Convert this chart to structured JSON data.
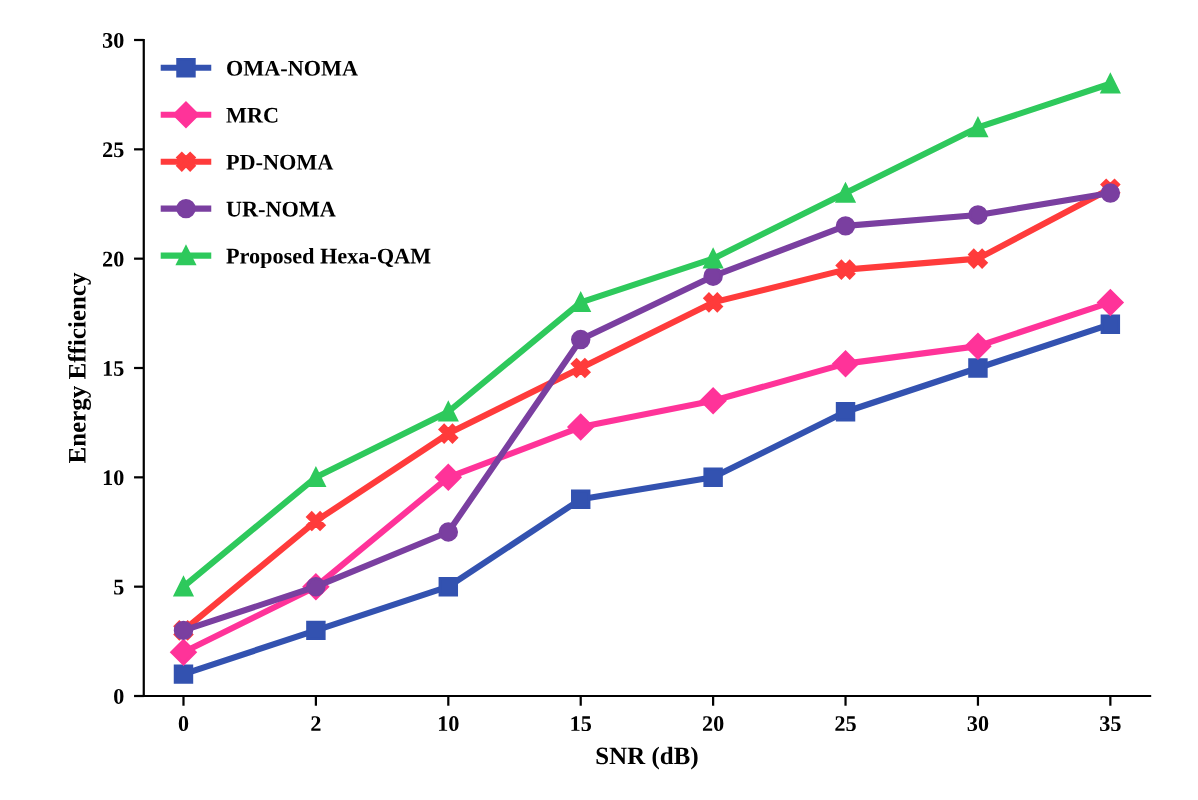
{
  "chart_data": {
    "type": "line",
    "xlabel": "SNR (dB)",
    "ylabel": "Energy Efficiency",
    "categories": [
      "0",
      "2",
      "10",
      "15",
      "20",
      "25",
      "30",
      "35"
    ],
    "series": [
      {
        "name": "OMA-NOMA",
        "color": "#3352b0",
        "marker": "square",
        "values": [
          1,
          3,
          5,
          9,
          10,
          13,
          15,
          17
        ]
      },
      {
        "name": "MRC",
        "color": "#ff3399",
        "marker": "diamond",
        "values": [
          2,
          5,
          10,
          12.3,
          13.5,
          15.2,
          16,
          18
        ]
      },
      {
        "name": "PD-NOMA",
        "color": "#ff3b3b",
        "marker": "cross",
        "values": [
          3,
          8,
          12,
          15,
          18,
          19.5,
          20,
          23.2
        ]
      },
      {
        "name": "UR-NOMA",
        "color": "#7a3fa0",
        "marker": "circle",
        "values": [
          3,
          5,
          7.5,
          16.3,
          19.2,
          21.5,
          22,
          23
        ]
      },
      {
        "name": "Proposed Hexa-QAM",
        "color": "#2ec95c",
        "marker": "triangle",
        "values": [
          5,
          10,
          13,
          18,
          20,
          23,
          26,
          28
        ]
      }
    ],
    "ylim": [
      0,
      30
    ],
    "yticks": [
      0,
      5,
      10,
      15,
      20,
      25,
      30
    ],
    "grid": false,
    "legend": "top left",
    "line_style": "solid"
  }
}
